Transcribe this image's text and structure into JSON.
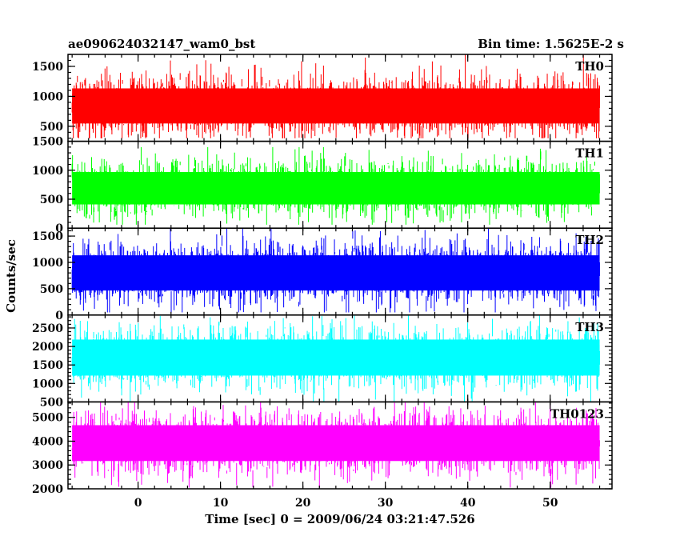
{
  "header": {
    "title_left": "ae090624032147_wam0_bst",
    "title_right": "Bin time: 1.5625E-2 s"
  },
  "axes": {
    "ylabel": "Counts/sec",
    "xlabel": "Time [sec] 0 = 2009/06/24 03:21:47.526"
  },
  "chart_data": {
    "type": "line",
    "title": "ae090624032147_wam0_bst",
    "subtitle": "Bin time: 1.5625E-2 s",
    "xlabel": "Time [sec] 0 = 2009/06/24 03:21:47.526",
    "ylabel": "Counts/sec",
    "xlim": [
      -8.5,
      57.5
    ],
    "x_ticks": [
      0,
      10,
      20,
      30,
      40,
      50
    ],
    "x_tick_labels": [
      "0",
      "10",
      "20",
      "30",
      "40",
      "50"
    ],
    "data_range_x": [
      -8,
      56
    ],
    "bin_time": 0.015625,
    "panels": [
      {
        "name": "TH0",
        "color": "#ff0000",
        "ylim": [
          250,
          1700
        ],
        "y_ticks": [
          500,
          1000,
          1500
        ],
        "y_tick_labels": [
          "500",
          "1000",
          "1500"
        ],
        "mean": 840,
        "min": 300,
        "max": 1700
      },
      {
        "name": "TH1",
        "color": "#00ff00",
        "ylim": [
          0,
          1500
        ],
        "y_ticks": [
          0,
          500,
          1000,
          1500
        ],
        "y_tick_labels": [
          "0",
          "500",
          "1000",
          "1500"
        ],
        "mean": 690,
        "min": 60,
        "max": 1400
      },
      {
        "name": "TH2",
        "color": "#0000ff",
        "ylim": [
          0,
          1650
        ],
        "y_ticks": [
          0,
          500,
          1000,
          1500
        ],
        "y_tick_labels": [
          "0",
          "500",
          "1000",
          "1500"
        ],
        "mean": 800,
        "min": 50,
        "max": 1650
      },
      {
        "name": "TH3",
        "color": "#00ffff",
        "ylim": [
          500,
          2850
        ],
        "y_ticks": [
          500,
          1000,
          1500,
          2000,
          2500
        ],
        "y_tick_labels": [
          "500",
          "1000",
          "1500",
          "2000",
          "2500"
        ],
        "mean": 1700,
        "min": 520,
        "max": 2850
      },
      {
        "name": "TH0123",
        "color": "#ff00ff",
        "ylim": [
          2000,
          5650
        ],
        "y_ticks": [
          2000,
          3000,
          4000,
          5000
        ],
        "y_tick_labels": [
          "2000",
          "3000",
          "4000",
          "5000"
        ],
        "mean": 3920,
        "min": 2050,
        "max": 5650
      }
    ]
  }
}
